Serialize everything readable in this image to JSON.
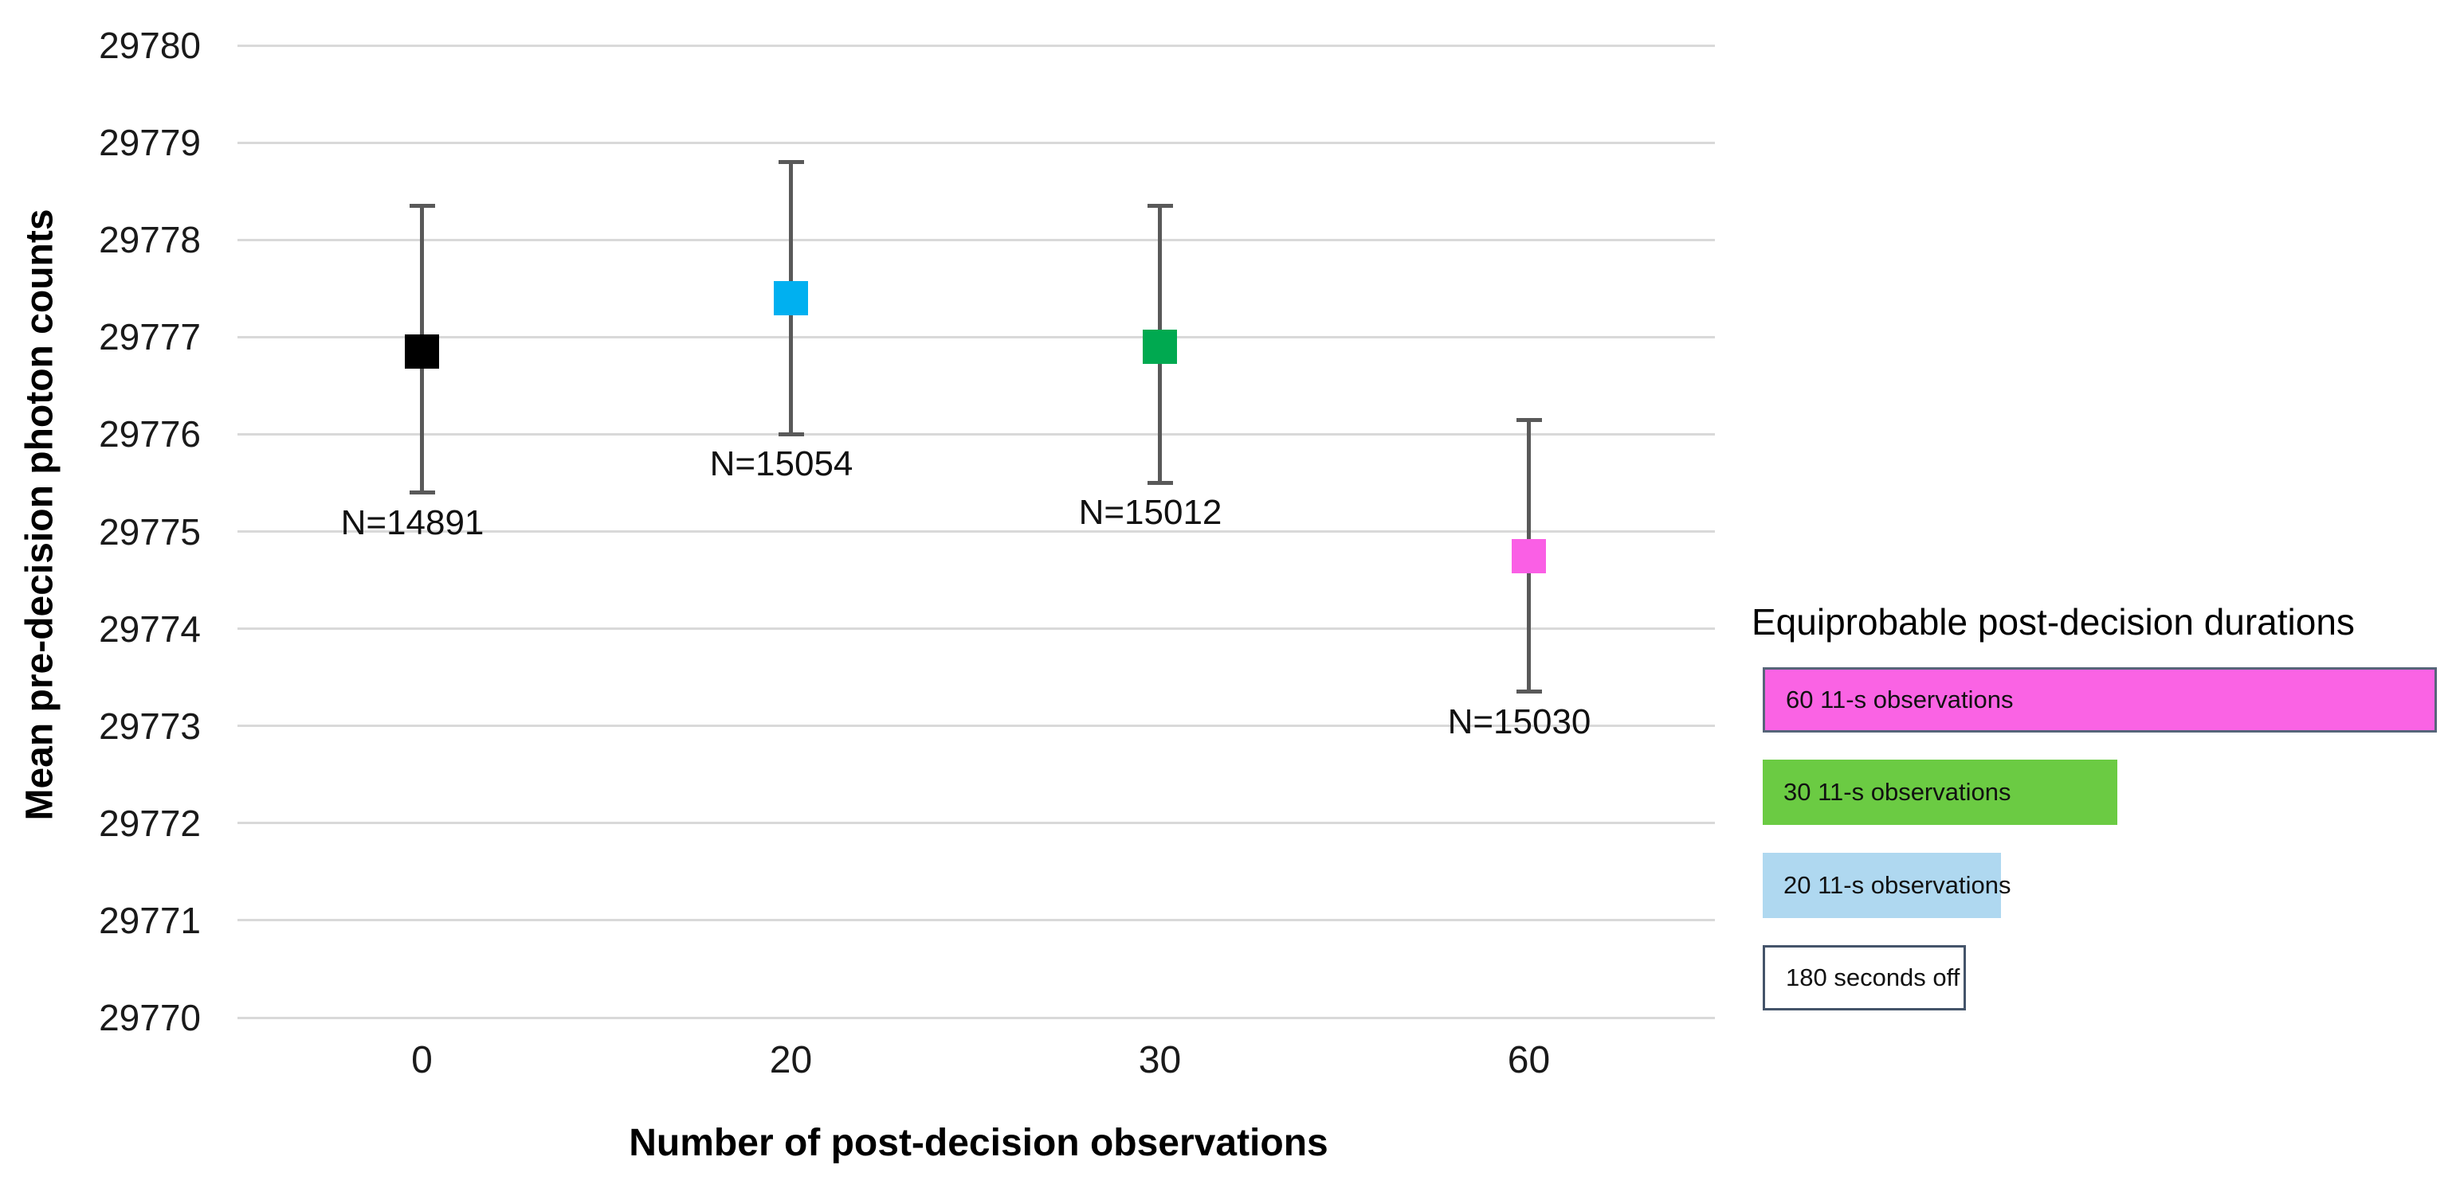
{
  "chart_data": {
    "type": "scatter",
    "title": "",
    "xlabel": "Number of post-decision observations",
    "ylabel": "Mean pre-decision photon counts",
    "x_categories": [
      "0",
      "20",
      "30",
      "60"
    ],
    "yticks": [
      "29780",
      "29779",
      "29778",
      "29777",
      "29776",
      "29775",
      "29774",
      "29773",
      "29772",
      "29771",
      "29770"
    ],
    "ylim": [
      29770,
      29780
    ],
    "grid": "horizontal",
    "gridline_color": "#D9D9D9",
    "error_bar_color": "#595959",
    "background": "#FFFFFF",
    "series": [
      {
        "category": "0",
        "condition": "180 seconds off",
        "mean": 29776.85,
        "upper": 29778.35,
        "lower": 29775.4,
        "n_label": "N=14891",
        "marker_color": "#000000"
      },
      {
        "category": "20",
        "condition": "20 11-s observations",
        "mean": 29777.4,
        "upper": 29778.8,
        "lower": 29776.0,
        "n_label": "N=15054",
        "marker_color": "#00B0F0"
      },
      {
        "category": "30",
        "condition": "30 11-s observations",
        "mean": 29776.9,
        "upper": 29778.35,
        "lower": 29775.5,
        "n_label": "N=15012",
        "marker_color": "#00A950"
      },
      {
        "category": "60",
        "condition": "60 11-s observations",
        "mean": 29774.75,
        "upper": 29776.15,
        "lower": 29773.35,
        "n_label": "N=15030",
        "marker_color": "#FA5FE5"
      }
    ],
    "legend": {
      "title": "Equiprobable post-decision durations",
      "position": "right",
      "items": [
        {
          "label": "60 11-s observations",
          "fill": "#FA63E4",
          "border": "#566579",
          "relative_width": 1.0
        },
        {
          "label": "30 11-s observations",
          "fill": "#6BCB43",
          "border": "",
          "relative_width": 0.526
        },
        {
          "label": "20 11-s observations",
          "fill": "#AFD8F0",
          "border": "",
          "relative_width": 0.353
        },
        {
          "label": "180 seconds off",
          "fill": "#FFFFFF",
          "border": "#44546A",
          "relative_width": 0.301
        }
      ]
    }
  }
}
